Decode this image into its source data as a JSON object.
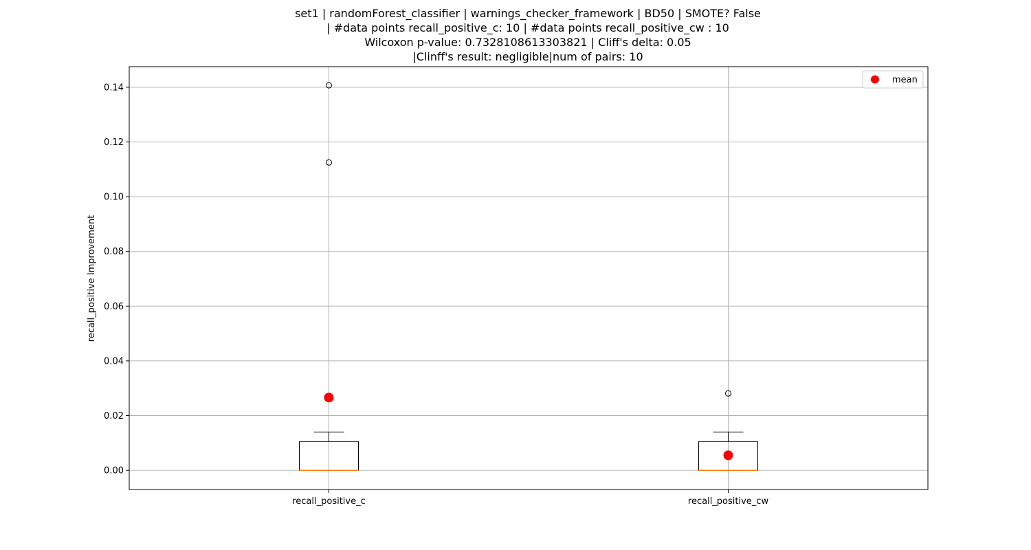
{
  "chart_data": {
    "type": "box",
    "title_lines": [
      "set1 | randomForest_classifier | warnings_checker_framework | BD50 | SMOTE? False",
      "| #data points recall_positive_c: 10 | #data points recall_positive_cw : 10",
      "Wilcoxon p-value: 0.7328108613303821 | Cliff's delta: 0.05",
      "|Clinff's result: negligible|num of pairs: 10"
    ],
    "xlabel": "",
    "ylabel": "recall_positive Improvement",
    "ylim": [
      -0.007,
      0.1475
    ],
    "yticks": [
      0.0,
      0.02,
      0.04,
      0.06,
      0.08,
      0.1,
      0.12,
      0.14
    ],
    "ytick_labels": [
      "0.00",
      "0.02",
      "0.04",
      "0.06",
      "0.08",
      "0.10",
      "0.12",
      "0.14"
    ],
    "categories": [
      "recall_positive_c",
      "recall_positive_cw"
    ],
    "boxes": [
      {
        "q1": 0.0,
        "median": 0.0,
        "q3": 0.0105,
        "whisker_low": 0.0,
        "whisker_high": 0.014,
        "outliers": [
          0.1125,
          0.1407
        ],
        "mean": 0.0266
      },
      {
        "q1": 0.0,
        "median": 0.0,
        "q3": 0.0105,
        "whisker_low": 0.0,
        "whisker_high": 0.014,
        "outliers": [
          0.0281
        ],
        "mean": 0.0055
      }
    ],
    "legend": {
      "entries": [
        "mean"
      ],
      "placement": "top-right"
    },
    "grid": true,
    "colors": {
      "mean": "#ff0000",
      "median": "#ff7f0e",
      "box": "#000000",
      "grid": "#b0b0b0"
    }
  }
}
